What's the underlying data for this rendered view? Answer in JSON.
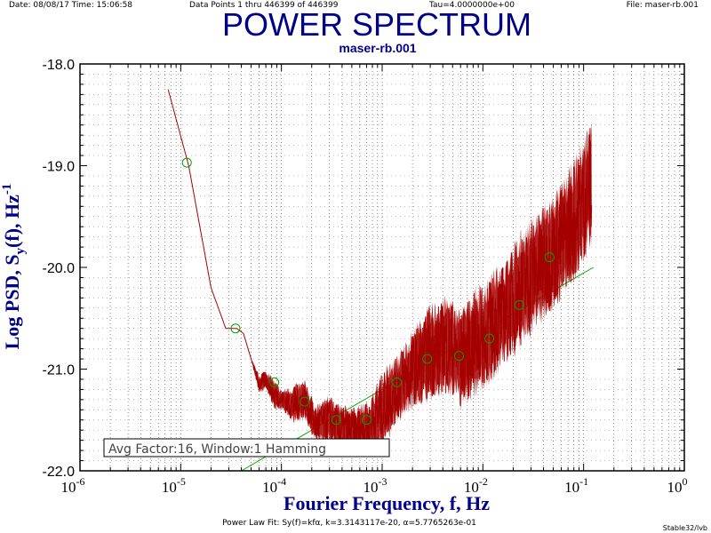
{
  "header": {
    "date": "Date: 08/08/17  Time: 15:06:58",
    "points": "Data Points 1 thru 446399 of 446399",
    "tau": "Tau=4.0000000e+00",
    "file": "File: maser-rb.001"
  },
  "footer": {
    "fit": "Power Law Fit: Sy(f)=kfα,  k=3.3143117e-20,  α=5.7765263e-01",
    "credit": "Stable32/lvb"
  },
  "colors": {
    "title": "#00008b",
    "psd_trace": "#a50000",
    "fit_line": "#00b000",
    "markers": "#00a000"
  },
  "chart_data": {
    "type": "line",
    "title": "POWER SPECTRUM",
    "subtitle": "maser-rb.001",
    "xlabel": "Fourier Frequency, f, Hz",
    "ylabel": "Log PSD, S",
    "ylabel_sub": "y",
    "ylabel_tail": "(f), Hz",
    "ylabel_sup": "-1",
    "x_scale": "log",
    "xlim": [
      1e-06,
      1
    ],
    "ylim": [
      -22.0,
      -18.0
    ],
    "grid": true,
    "x_ticks": [
      {
        "value": 1e-06,
        "base": "10",
        "exp": "-6"
      },
      {
        "value": 1e-05,
        "base": "10",
        "exp": "-5"
      },
      {
        "value": 0.0001,
        "base": "10",
        "exp": "-4"
      },
      {
        "value": 0.001,
        "base": "10",
        "exp": "-3"
      },
      {
        "value": 0.01,
        "base": "10",
        "exp": "-2"
      },
      {
        "value": 0.1,
        "base": "10",
        "exp": "-1"
      },
      {
        "value": 1,
        "base": "10",
        "exp": "0"
      }
    ],
    "y_ticks": [
      {
        "value": -18,
        "label": "-18.0"
      },
      {
        "value": -19,
        "label": "-19.0"
      },
      {
        "value": -20,
        "label": "-20.0"
      },
      {
        "value": -21,
        "label": "-21.0"
      },
      {
        "value": -22,
        "label": "-22.0"
      }
    ],
    "annotation": "Avg Factor:16, Window:1 Hamming",
    "series": [
      {
        "kind": "psd",
        "x": [
          7.5e-06,
          1.2e-05,
          2e-05,
          2.8e-05,
          3.6e-05,
          4.2e-05,
          5e-05,
          6e-05,
          7e-05,
          8.5e-05,
          0.0001,
          0.00013,
          0.00017,
          0.00022,
          0.0003,
          0.0004,
          0.00055,
          0.00075,
          0.001,
          0.0014,
          0.002,
          0.003,
          0.0045,
          0.006,
          0.008,
          0.011,
          0.016,
          0.023,
          0.032,
          0.045,
          0.065,
          0.09,
          0.12
        ],
        "y": [
          -18.25,
          -19.0,
          -20.2,
          -20.6,
          -20.6,
          -20.65,
          -20.9,
          -21.15,
          -21.1,
          -21.25,
          -21.3,
          -21.35,
          -21.3,
          -21.55,
          -21.5,
          -21.6,
          -21.6,
          -21.55,
          -21.4,
          -21.2,
          -21.0,
          -20.85,
          -20.75,
          -20.9,
          -20.75,
          -20.65,
          -20.45,
          -20.25,
          -20.05,
          -19.9,
          -19.7,
          -19.45,
          -19.15
        ],
        "spread": [
          0,
          0,
          0,
          0,
          0,
          0,
          0,
          0.1,
          0.1,
          0.15,
          0.1,
          0.2,
          0.2,
          0.2,
          0.25,
          0.25,
          0.25,
          0.25,
          0.4,
          0.35,
          0.4,
          0.5,
          0.5,
          0.5,
          0.55,
          0.55,
          0.55,
          0.6,
          0.6,
          0.6,
          0.6,
          0.65,
          0.65
        ]
      },
      {
        "kind": "fit",
        "x": [
          4e-05,
          0.125
        ],
        "y": [
          -22.0,
          -20.0
        ]
      },
      {
        "kind": "points",
        "x": [
          1.15e-05,
          3.5e-05,
          8.5e-05,
          0.00017,
          0.00035,
          0.0007,
          0.0014,
          0.0028,
          0.0058,
          0.0116,
          0.023,
          0.046
        ],
        "y": [
          -18.97,
          -20.6,
          -21.13,
          -21.32,
          -21.5,
          -21.5,
          -21.13,
          -20.9,
          -20.87,
          -20.7,
          -20.37,
          -19.9
        ]
      }
    ]
  }
}
